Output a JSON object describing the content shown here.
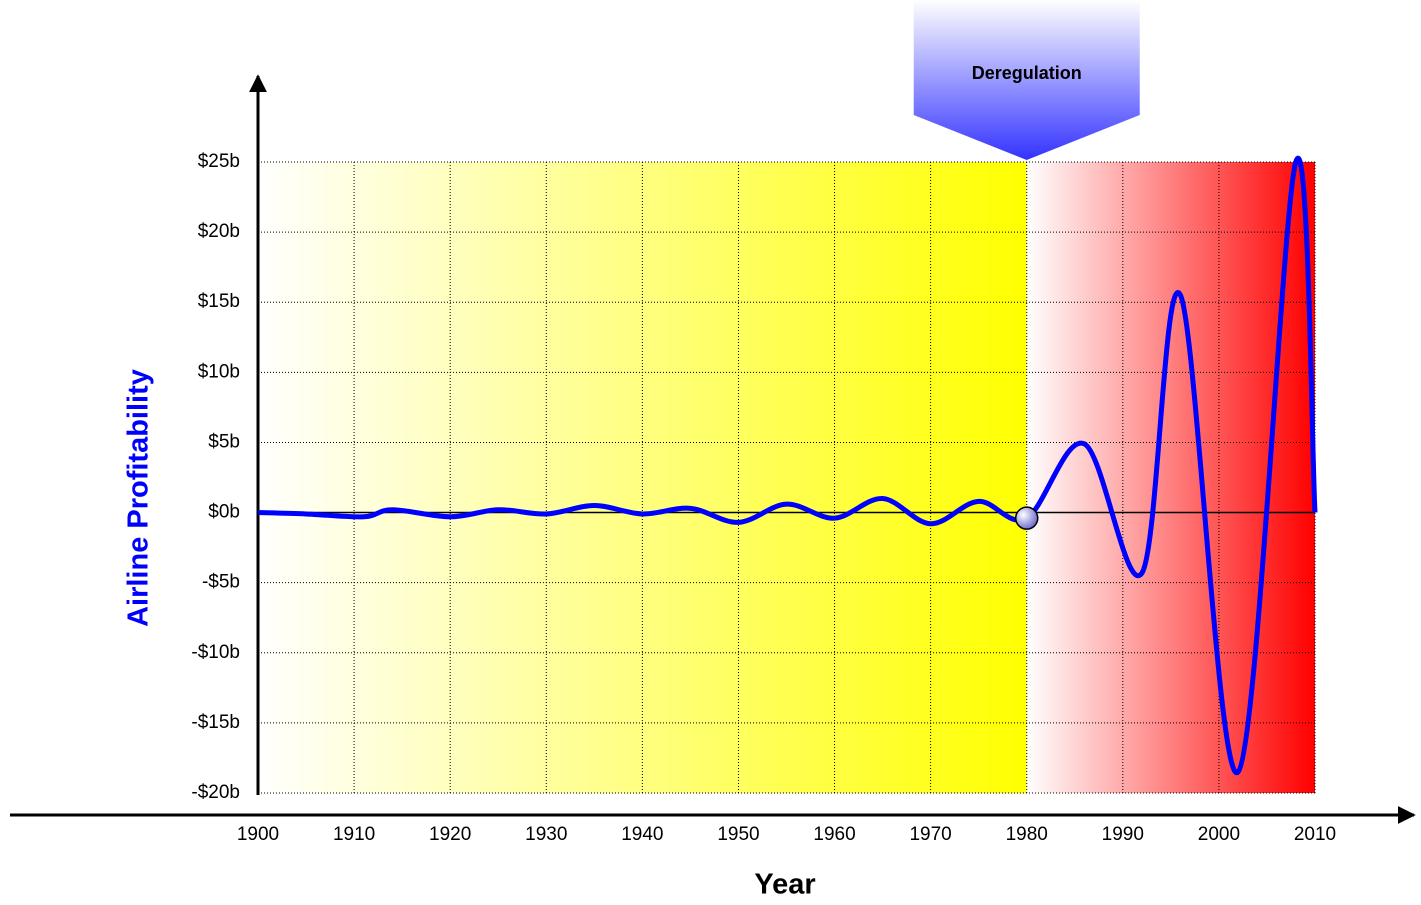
{
  "chart_data": {
    "type": "line",
    "x_label": "Year",
    "y_label": "Airline Profitability",
    "x": [
      1900,
      1905,
      1911,
      1914,
      1920,
      1925,
      1930,
      1935,
      1940,
      1945,
      1950,
      1955,
      1960,
      1965,
      1970,
      1975,
      1980,
      1986,
      1992,
      1996,
      2002,
      2008,
      2010
    ],
    "series": [
      {
        "color": "#0000ff",
        "values": [
          0,
          -0.1,
          -0.3,
          0.2,
          -0.3,
          0.2,
          -0.1,
          0.5,
          -0.1,
          0.3,
          -0.7,
          0.6,
          -0.4,
          1.0,
          -0.8,
          0.8,
          -0.4,
          4.9,
          -4.3,
          15.5,
          -18.5,
          25,
          0
        ]
      }
    ],
    "xlim": [
      1900,
      2010
    ],
    "xticks": [
      1900,
      1910,
      1920,
      1930,
      1940,
      1950,
      1960,
      1970,
      1980,
      1990,
      2000,
      2010
    ],
    "ylim": [
      -20,
      25
    ],
    "yticks": [
      {
        "value": -20,
        "label": "-$20b"
      },
      {
        "value": -15,
        "label": "-$15b"
      },
      {
        "value": -10,
        "label": "-$10b"
      },
      {
        "value": -5,
        "label": "-$5b"
      },
      {
        "value": 0,
        "label": "$0b"
      },
      {
        "value": 5,
        "label": "$5b"
      },
      {
        "value": 10,
        "label": "$10b"
      },
      {
        "value": 15,
        "label": "$15b"
      },
      {
        "value": 20,
        "label": "$20b"
      },
      {
        "value": 25,
        "label": "$25b"
      }
    ],
    "grid": true,
    "annotations": [
      {
        "text": "Deregulation",
        "x": 1980
      }
    ]
  }
}
